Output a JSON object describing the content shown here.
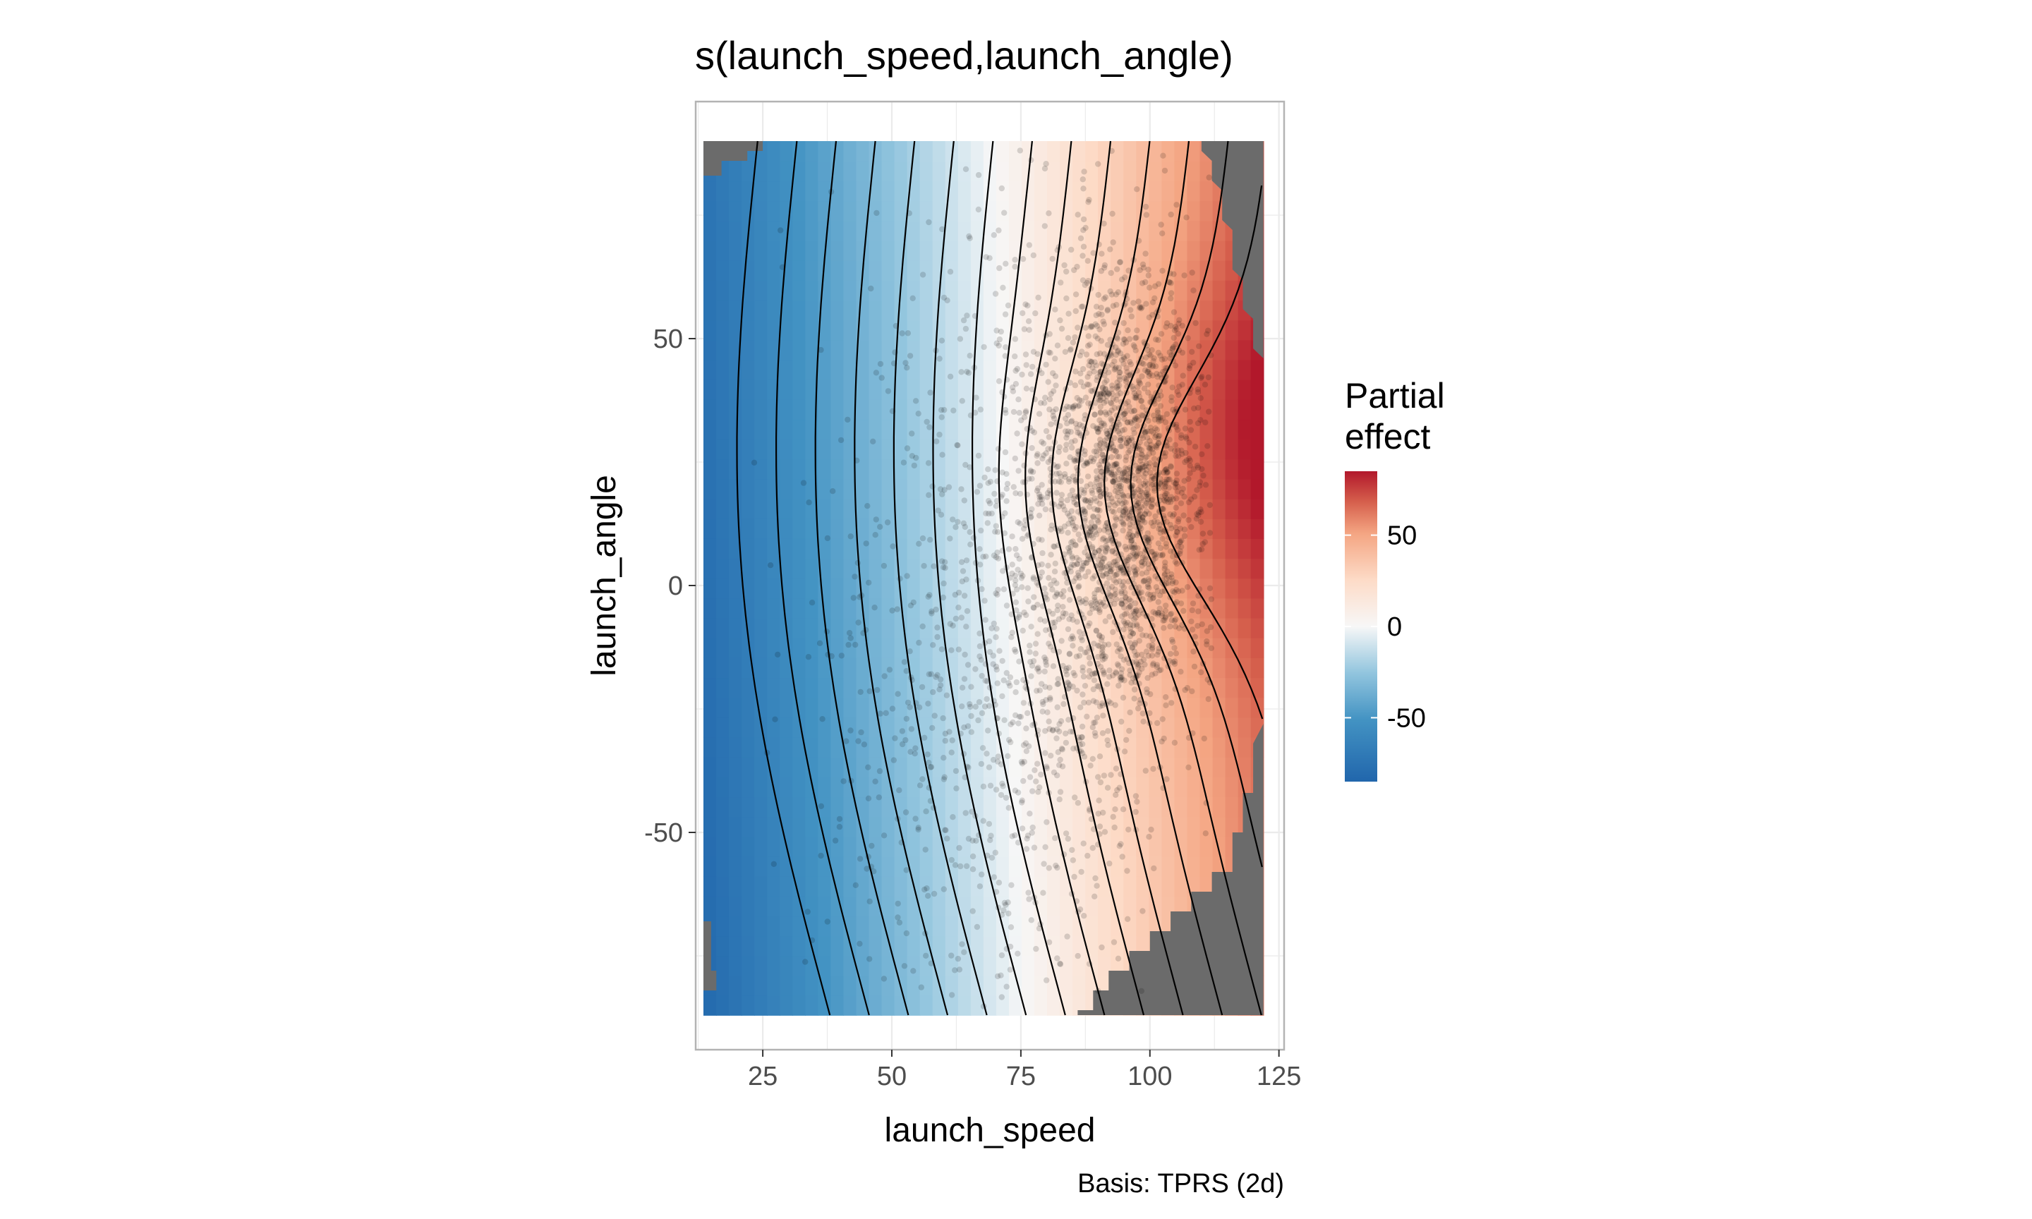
{
  "chart_data": {
    "type": "heatmap",
    "title": "s(launch_speed,launch_angle)",
    "xlabel": "launch_speed",
    "ylabel": "launch_angle",
    "caption": "Basis: TPRS (2d)",
    "xlim": [
      12,
      126
    ],
    "ylim": [
      -94,
      98
    ],
    "x_ticks": [
      25,
      50,
      75,
      100,
      125
    ],
    "y_ticks": [
      -50,
      0,
      50
    ],
    "x_tick_labels": [
      "25",
      "50",
      "75",
      "100",
      "125"
    ],
    "y_tick_labels": [
      "-50",
      "0",
      "50"
    ],
    "grid": true,
    "surface": {
      "x_range": [
        13.5,
        122
      ],
      "y_range": [
        -87,
        90
      ],
      "description_values": "partial effect increases with launch_speed; peak near launch_speed 120, launch_angle 30",
      "effect_min": -85,
      "effect_max": 85
    },
    "missing_regions": [
      {
        "side": "top-left"
      },
      {
        "side": "bottom-left"
      },
      {
        "side": "right"
      },
      {
        "side": "bottom-right"
      }
    ],
    "contour_levels": [
      -80,
      -70,
      -60,
      -50,
      -40,
      -30,
      -20,
      -10,
      0,
      10,
      20,
      30,
      40,
      50
    ],
    "points": {
      "count_approx": 3000,
      "color": "#000000",
      "alpha": 0.15
    },
    "legend": {
      "title_line1": "Partial",
      "title_line2": "effect",
      "ticks": [
        50,
        0,
        -50
      ],
      "tick_labels": [
        "50",
        "0",
        "-50"
      ],
      "range": [
        -85,
        85
      ],
      "placement": "right"
    },
    "colors": {
      "low": "#2166ac",
      "mid": "#f7f7f7",
      "high": "#b2182b",
      "missing": "#6b6b6b"
    }
  }
}
